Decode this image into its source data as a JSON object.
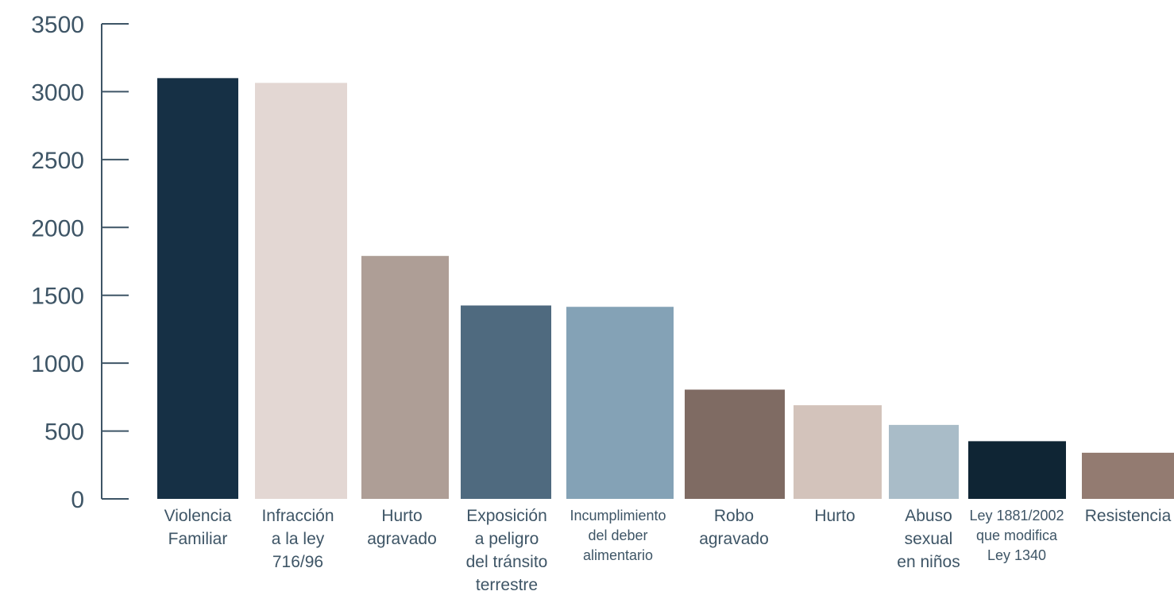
{
  "chart_data": {
    "type": "bar",
    "title": "",
    "xlabel": "",
    "ylabel": "",
    "ylim": [
      0,
      3500
    ],
    "yticks": [
      0,
      500,
      1000,
      1500,
      2000,
      2500,
      3000,
      3500
    ],
    "grid": false,
    "legend": "none",
    "categories": [
      [
        "Violencia",
        "Familiar"
      ],
      [
        "Infracción",
        "a la ley",
        "716/96"
      ],
      [
        "Hurto",
        "agravado"
      ],
      [
        "Exposición",
        "a peligro",
        "del tránsito",
        "terrestre"
      ],
      [
        "Incumplimiento",
        "del deber",
        "alimentario"
      ],
      [
        "Robo",
        "agravado"
      ],
      [
        "Hurto"
      ],
      [
        "Abuso",
        "sexual",
        "en niños"
      ],
      [
        "Ley 1881/2002",
        "que modifica",
        "Ley 1340"
      ],
      [
        "Resistencia"
      ]
    ],
    "values": [
      3100,
      3065,
      1790,
      1425,
      1415,
      805,
      690,
      545,
      425,
      340
    ],
    "colors": [
      "#163045",
      "#e3d7d3",
      "#ae9e96",
      "#4f6a7f",
      "#84a2b6",
      "#7f6b63",
      "#d3c3bb",
      "#a9bcc8",
      "#0f2534",
      "#937b71"
    ],
    "axis_color": "#3e5566",
    "label_color": "#3e5566"
  }
}
